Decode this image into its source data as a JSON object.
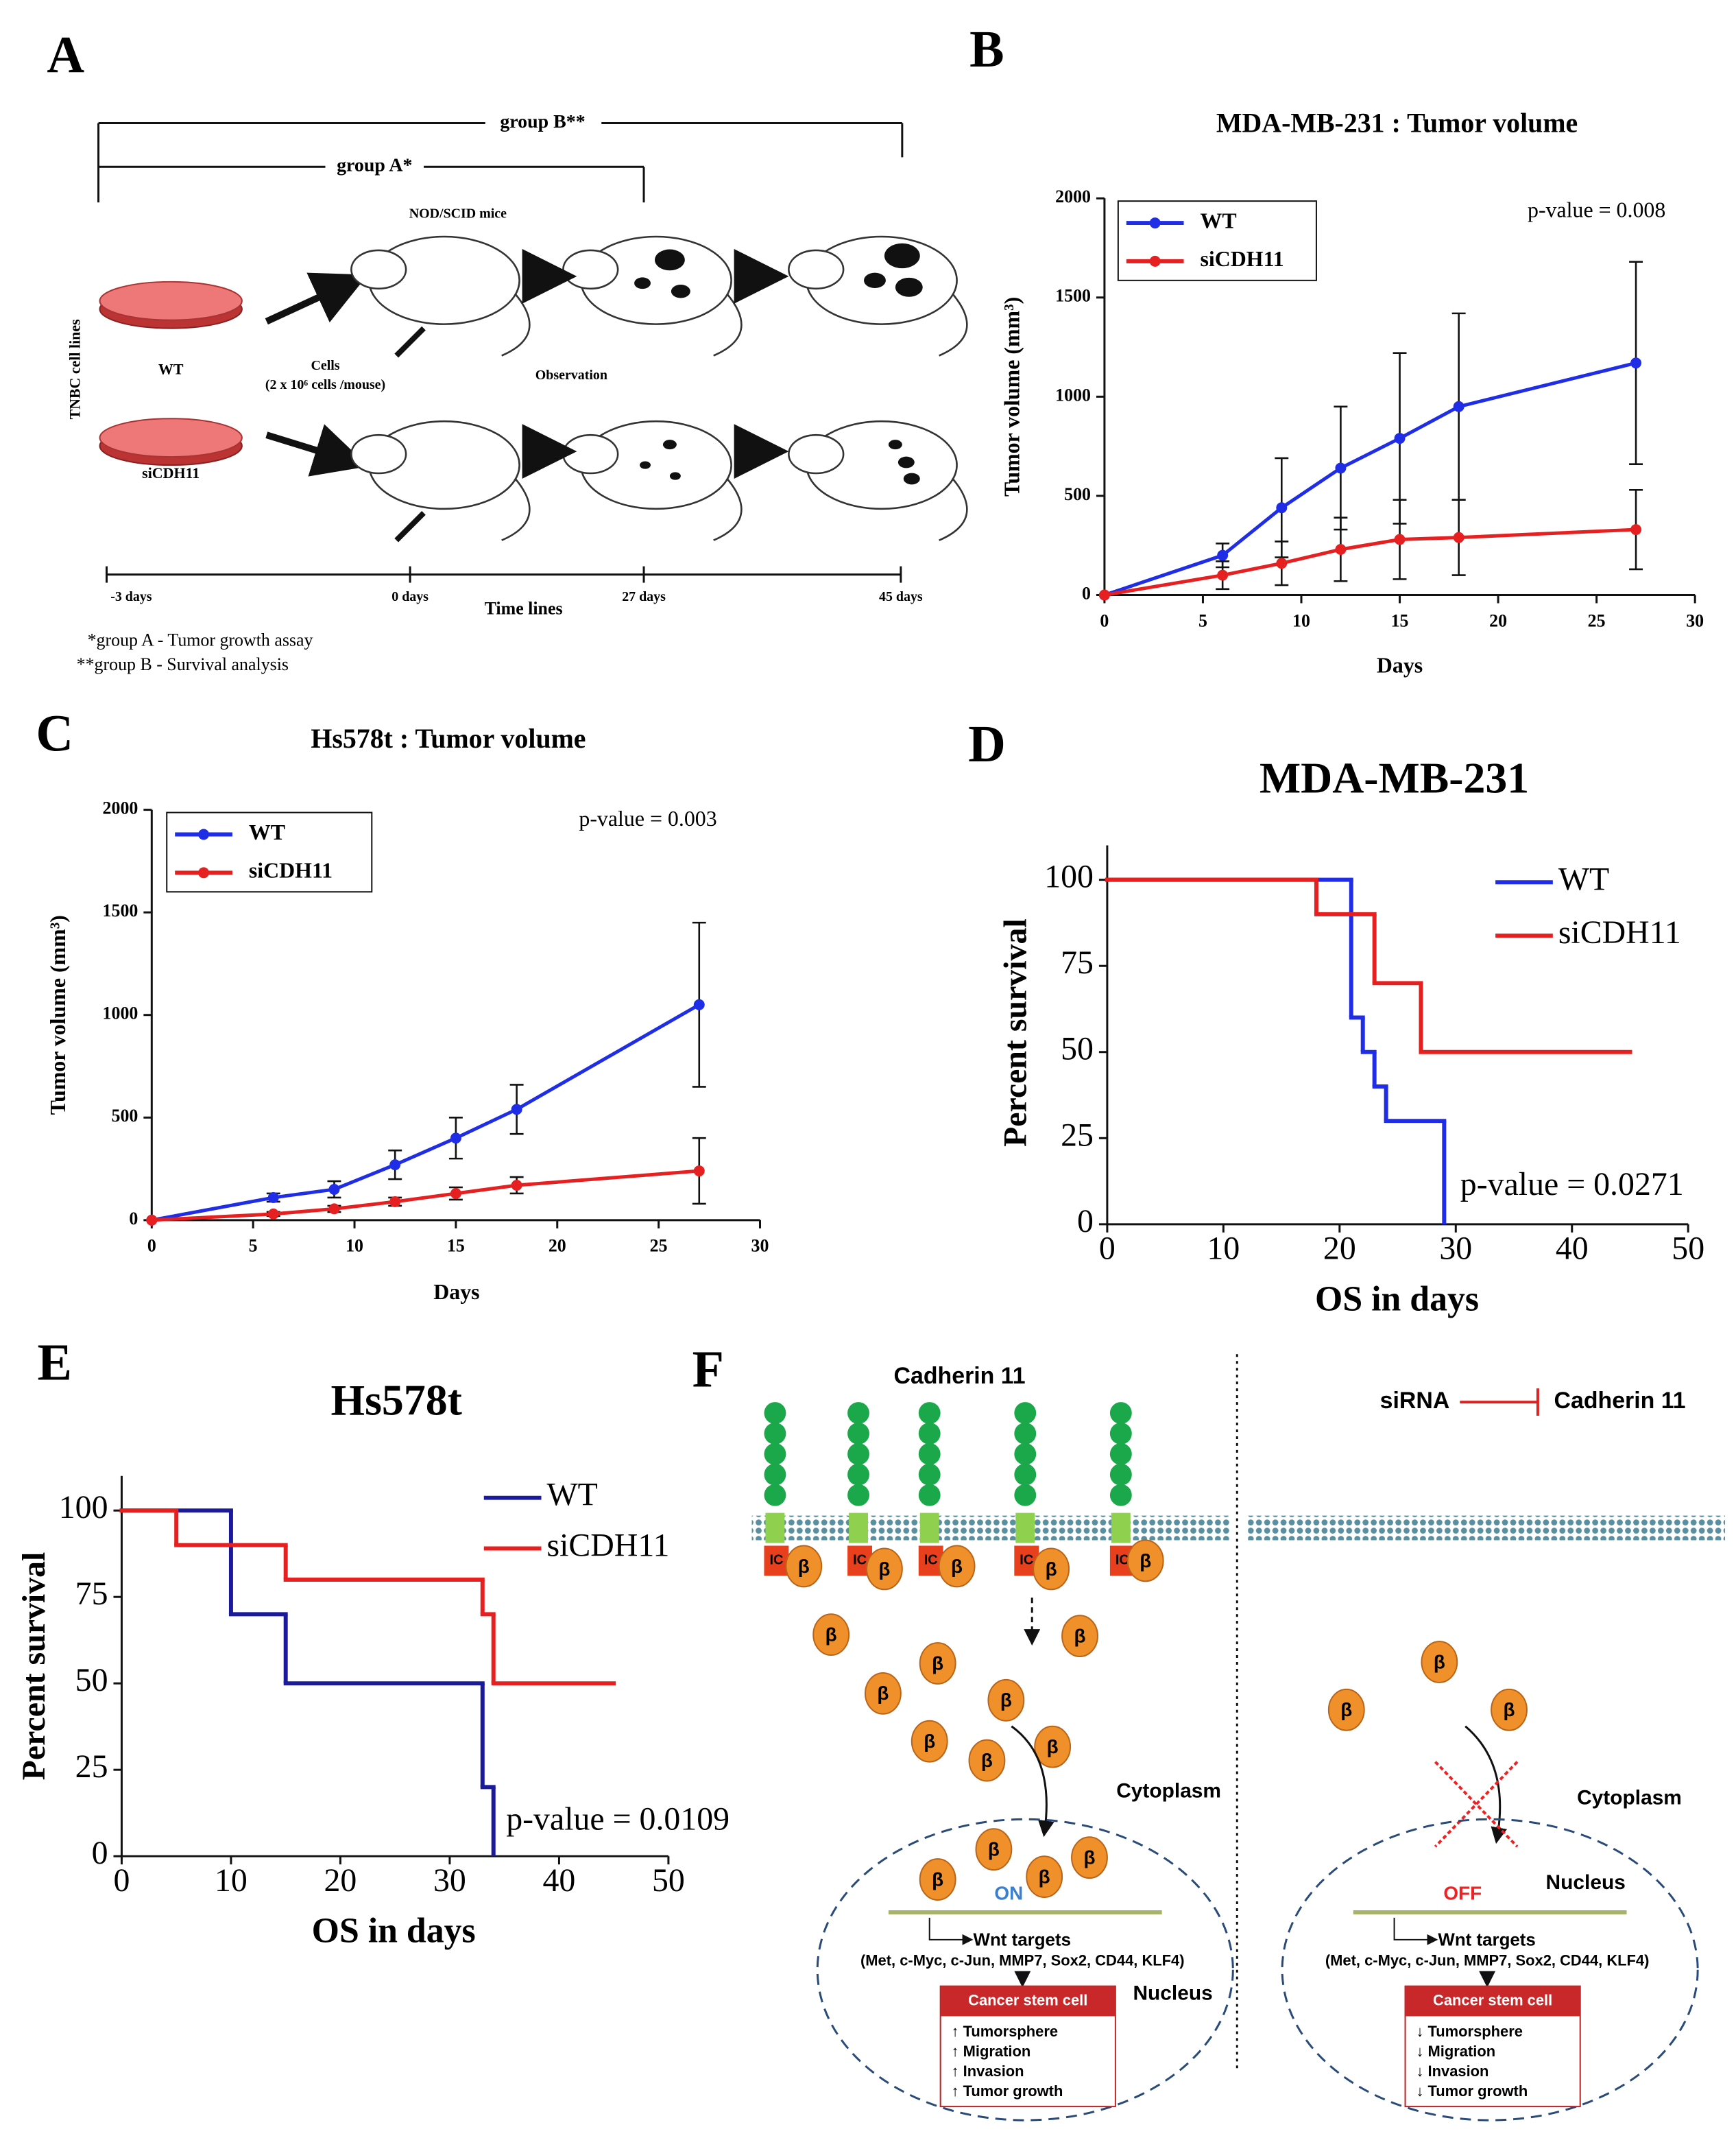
{
  "panel_labels": [
    "A",
    "B",
    "C",
    "D",
    "E",
    "F"
  ],
  "chart_data": [
    {
      "type": "line",
      "title": "MDA-MB-231 : Tumor volume",
      "x_label": "Days",
      "y_label": "Tumor volume (mm³)",
      "annotation": "p-value = 0.008",
      "x": [
        0,
        6,
        9,
        12,
        15,
        18,
        27
      ],
      "series": [
        {
          "name": "WT",
          "color": "#1f2ee6",
          "values": [
            0,
            200,
            440,
            640,
            790,
            950,
            1170
          ],
          "errors": [
            0,
            60,
            250,
            310,
            430,
            470,
            510
          ]
        },
        {
          "name": "siCDH11",
          "color": "#e62020",
          "values": [
            0,
            100,
            160,
            230,
            280,
            290,
            330
          ],
          "errors": [
            0,
            70,
            110,
            160,
            200,
            190,
            200
          ]
        }
      ],
      "xlim": [
        0,
        30
      ],
      "xticks": [
        0,
        5,
        10,
        15,
        20,
        25,
        30
      ],
      "ylim": [
        0,
        2000
      ],
      "yticks": [
        0,
        500,
        1000,
        1500,
        2000
      ]
    },
    {
      "type": "line",
      "title": "Hs578t : Tumor volume",
      "x_label": "Days",
      "y_label": "Tumor volume (mm³)",
      "annotation": "p-value = 0.003",
      "x": [
        0,
        6,
        9,
        12,
        15,
        18,
        27
      ],
      "series": [
        {
          "name": "WT",
          "color": "#1f2ee6",
          "values": [
            0,
            110,
            150,
            270,
            400,
            540,
            1050
          ],
          "errors": [
            0,
            20,
            40,
            70,
            100,
            120,
            400
          ]
        },
        {
          "name": "siCDH11",
          "color": "#e62020",
          "values": [
            0,
            30,
            55,
            90,
            130,
            170,
            240
          ],
          "errors": [
            0,
            10,
            15,
            20,
            30,
            40,
            160
          ]
        }
      ],
      "xlim": [
        0,
        30
      ],
      "xticks": [
        0,
        5,
        10,
        15,
        20,
        25,
        30
      ],
      "ylim": [
        0,
        2000
      ],
      "yticks": [
        0,
        500,
        1000,
        1500,
        2000
      ]
    },
    {
      "type": "step",
      "title": "MDA-MB-231",
      "x_label": "OS in days",
      "y_label": "Percent survival",
      "annotation": "p-value = 0.0271",
      "series": [
        {
          "name": "WT",
          "color": "#1f2ee6",
          "x": [
            0,
            21,
            22,
            23,
            24,
            29
          ],
          "values": [
            100,
            60,
            50,
            40,
            30,
            0
          ]
        },
        {
          "name": "siCDH11",
          "color": "#e62020",
          "x": [
            0,
            18,
            23,
            27,
            45
          ],
          "values": [
            100,
            90,
            70,
            50,
            50
          ]
        }
      ],
      "xlim": [
        0,
        50
      ],
      "xticks": [
        0,
        10,
        20,
        30,
        40,
        50
      ],
      "ylim": [
        0,
        110
      ],
      "yticks": [
        0,
        25,
        50,
        75,
        100
      ]
    },
    {
      "type": "step",
      "title": "Hs578t",
      "x_label": "OS in days",
      "y_label": "Percent survival",
      "annotation": "p-value = 0.0109",
      "series": [
        {
          "name": "WT",
          "color": "#1a1a9a",
          "x": [
            0,
            10,
            15,
            33,
            34
          ],
          "values": [
            100,
            70,
            50,
            20,
            0
          ]
        },
        {
          "name": "siCDH11",
          "color": "#e62020",
          "x": [
            0,
            5,
            15,
            33,
            34,
            45
          ],
          "values": [
            100,
            90,
            80,
            70,
            50,
            50
          ]
        }
      ],
      "xlim": [
        0,
        50
      ],
      "xticks": [
        0,
        10,
        20,
        30,
        40,
        50
      ],
      "ylim": [
        0,
        110
      ],
      "yticks": [
        0,
        25,
        50,
        75,
        100
      ]
    }
  ],
  "diagram_a": {
    "group_b": "group B**",
    "group_a": "group A*",
    "mice": "NOD/SCID mice",
    "cell_lines": "TNBC cell lines",
    "wt": "WT",
    "si": "siCDH11",
    "cells": "Cells",
    "cells_count": "(2 x 10⁶ cells /mouse)",
    "observation": "Observation",
    "timeline": [
      "-3 days",
      "0 days",
      "27 days",
      "45 days"
    ],
    "timeline_label": "Time lines",
    "notes": [
      "*group A - Tumor growth assay",
      "**group B - Survival analysis"
    ]
  },
  "diagram_f": {
    "cadherin": "Cadherin 11",
    "sirna": "siRNA",
    "cadherin_right": "Cadherin 11",
    "ic": "IC",
    "beta": "β",
    "cytoplasm": "Cytoplasm",
    "nucleus": "Nucleus",
    "on": "ON",
    "off": "OFF",
    "wnt": "Wnt targets",
    "targets": "(Met, c-Myc, c-Jun, MMP7, Sox2, CD44, KLF4)",
    "csc": "Cancer stem cell",
    "up": [
      "↑ Tumorsphere",
      "↑ Migration",
      "↑ Invasion",
      "↑ Tumor growth"
    ],
    "down": [
      "↓ Tumorsphere",
      "↓ Migration",
      "↓ Invasion",
      "↓ Tumor growth"
    ]
  }
}
